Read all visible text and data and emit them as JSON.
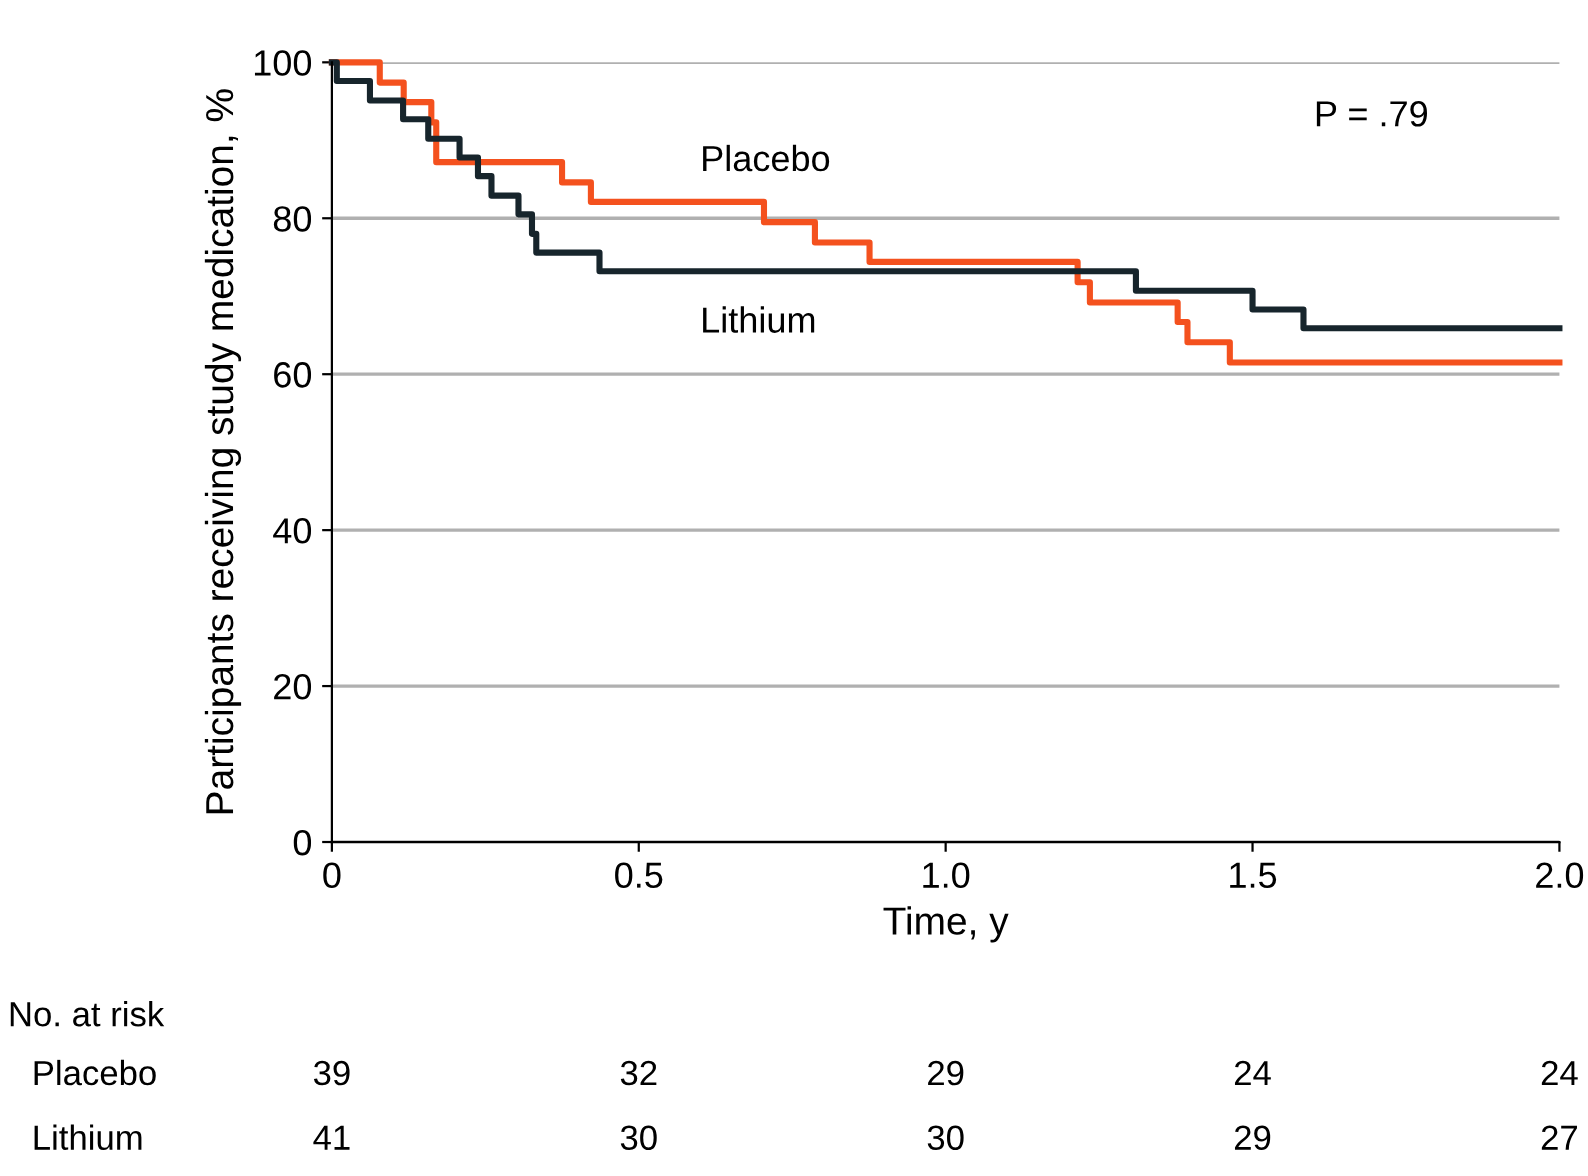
{
  "chart_data": {
    "type": "step",
    "xlabel": "Time, y",
    "ylabel": "Participants receiving study medication, %",
    "xlim": [
      0,
      2.0
    ],
    "xticks": [
      0,
      0.5,
      {
        "value": 1,
        "label": "1.0"
      },
      1.5,
      {
        "value": 2,
        "label": "2.0"
      }
    ],
    "ylim": [
      0,
      100
    ],
    "yticks": [
      0,
      20,
      40,
      60,
      80,
      100
    ],
    "grid": "y",
    "legend": false,
    "series": [
      {
        "name": "Placebo",
        "color": "#f4511e",
        "x": [
          0,
          0.078,
          0.117,
          0.162,
          0.17,
          0.375,
          0.422,
          0.704,
          0.787,
          0.876,
          1.215,
          1.235,
          1.378,
          1.394,
          1.463,
          2.0
        ],
        "values": [
          100,
          97.4,
          94.9,
          92.3,
          87.2,
          84.6,
          82.1,
          79.5,
          76.9,
          74.4,
          71.8,
          69.2,
          66.7,
          64.1,
          61.5,
          61.5
        ]
      },
      {
        "name": "Lithium",
        "color": "#17252c",
        "x": [
          0,
          0.008,
          0.062,
          0.116,
          0.157,
          0.208,
          0.238,
          0.26,
          0.304,
          0.326,
          0.333,
          0.436,
          1.31,
          1.5,
          1.583,
          2.0
        ],
        "values": [
          100,
          97.6,
          95.1,
          92.7,
          90.2,
          87.8,
          85.4,
          82.9,
          80.5,
          78.0,
          75.6,
          73.2,
          70.7,
          68.3,
          65.9,
          65.9
        ]
      }
    ],
    "annotations": [
      "P = .79",
      "No. at risk",
      "Placebo 39 32 29 24 24",
      "Lithium 41 30 30 29 27"
    ]
  }
}
